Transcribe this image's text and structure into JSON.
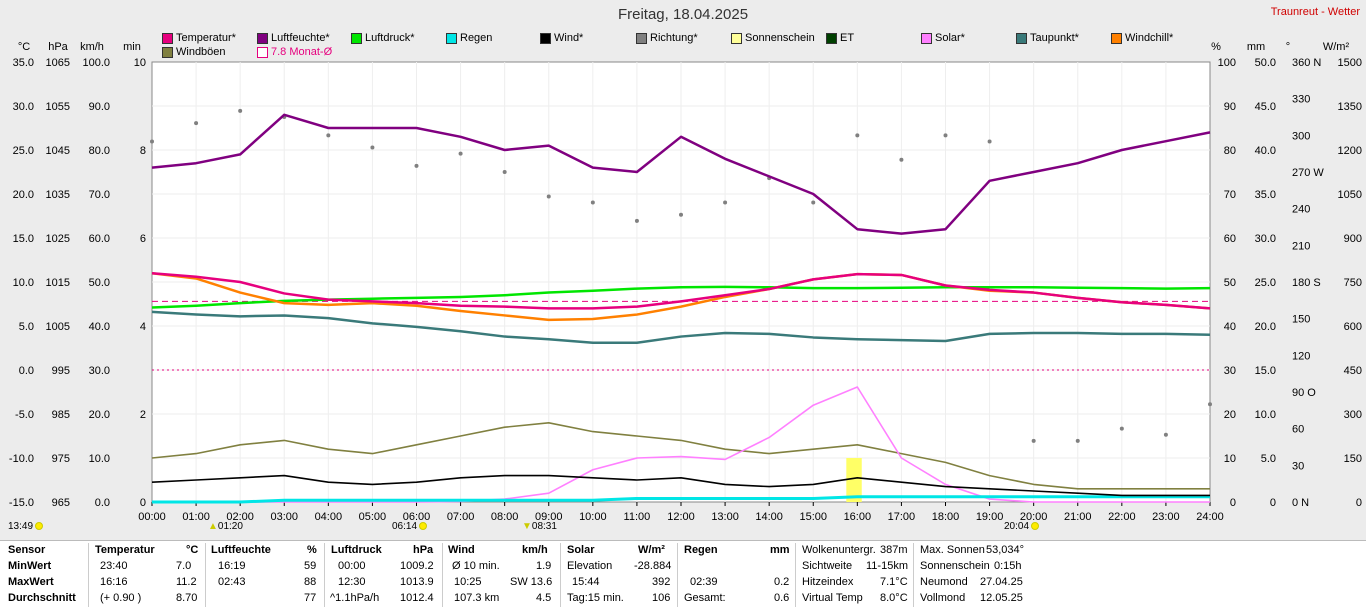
{
  "title": "Freitag, 18.04.2025",
  "station": "Traunreut - Wetter",
  "units_left": [
    "°C",
    "hPa",
    "km/h",
    "min"
  ],
  "units_right": [
    "%",
    "mm",
    "°",
    "W/m²"
  ],
  "axes": {
    "celsius": [
      "35.0",
      "30.0",
      "25.0",
      "20.0",
      "15.0",
      "10.0",
      "5.0",
      "0.0",
      "-5.0",
      "-10.0",
      "-15.0"
    ],
    "hpa": [
      "1065",
      "1055",
      "1045",
      "1035",
      "1025",
      "1015",
      "1005",
      "995",
      "985",
      "975",
      "965"
    ],
    "kmh": [
      "100.0",
      "90.0",
      "80.0",
      "70.0",
      "60.0",
      "50.0",
      "40.0",
      "30.0",
      "20.0",
      "10.0",
      "0.0"
    ],
    "min": [
      "10",
      "8",
      "6",
      "4",
      "2",
      "0"
    ],
    "pct": [
      "100",
      "90",
      "80",
      "70",
      "60",
      "50",
      "40",
      "30",
      "20",
      "10",
      "0"
    ],
    "mm": [
      "50.0",
      "45.0",
      "40.0",
      "35.0",
      "30.0",
      "25.0",
      "20.0",
      "15.0",
      "10.0",
      "5.0",
      "0"
    ],
    "deg": [
      "360 N",
      "330",
      "300",
      "270 W",
      "240",
      "210",
      "180 S",
      "150",
      "120",
      "90 O",
      "60",
      "30",
      "0 N"
    ],
    "wm2": [
      "1500",
      "1350",
      "1200",
      "1050",
      "900",
      "750",
      "600",
      "450",
      "300",
      "150",
      "0"
    ],
    "hours": [
      "00:00",
      "01:00",
      "02:00",
      "03:00",
      "04:00",
      "05:00",
      "06:00",
      "07:00",
      "08:00",
      "09:00",
      "10:00",
      "11:00",
      "12:00",
      "13:00",
      "14:00",
      "15:00",
      "16:00",
      "17:00",
      "18:00",
      "19:00",
      "20:00",
      "21:00",
      "22:00",
      "23:00",
      "24:00"
    ]
  },
  "legend": [
    {
      "label": "Temperatur*",
      "color": "#e6007e"
    },
    {
      "label": "Luftfeuchte*",
      "color": "#800080"
    },
    {
      "label": "Luftdruck*",
      "color": "#00e600"
    },
    {
      "label": "Regen",
      "color": "#00e6e6"
    },
    {
      "label": "Wind*",
      "color": "#000000"
    },
    {
      "label": "Richtung*",
      "color": "#808080"
    },
    {
      "label": "Sonnenschein",
      "color": "#ffff99"
    },
    {
      "label": "ET",
      "color": "#004000"
    },
    {
      "label": "Solar*",
      "color": "#ff80ff"
    },
    {
      "label": "Taupunkt*",
      "color": "#3a7a7a"
    },
    {
      "label": "Windchill*",
      "color": "#ff8000"
    },
    {
      "label": "Windböen",
      "color": "#808040"
    },
    {
      "label": "7.8 Monat-Ø",
      "color": "#e6007e"
    }
  ],
  "markers": {
    "start_time": "13:49",
    "moonset": "01:20",
    "sunrise": "06:14",
    "moonrise": "08:31",
    "sunset": "20:04"
  },
  "stats": {
    "headers": {
      "sensor": "Sensor",
      "temp": "Temperatur",
      "temp_u": "°C",
      "hum": "Luftfeuchte",
      "hum_u": "%",
      "press": "Luftdruck",
      "press_u": "hPa",
      "wind": "Wind",
      "wind_u": "km/h",
      "solar": "Solar",
      "solar_u": "W/m²",
      "rain": "Regen",
      "rain_u": "mm"
    },
    "row_labels": [
      "MinWert",
      "MaxWert",
      "Durchschnitt"
    ],
    "temp": [
      [
        "23:40",
        "7.0"
      ],
      [
        "16:16",
        "11.2"
      ],
      [
        "(+ 0.90 )",
        "8.70"
      ]
    ],
    "hum": [
      [
        "16:19",
        "59"
      ],
      [
        "02:43",
        "88"
      ],
      [
        "",
        "77"
      ]
    ],
    "press": [
      [
        "00:00",
        "1009.2"
      ],
      [
        "12:30",
        "1013.9"
      ],
      [
        "^1.1hPa/h",
        "1012.4"
      ]
    ],
    "wind": [
      [
        "Ø 10 min.",
        "1.9"
      ],
      [
        "10:25",
        "SW 13.6"
      ],
      [
        "107.3 km",
        "4.5"
      ]
    ],
    "solar": [
      [
        "Elevation",
        "-28.884"
      ],
      [
        "15:44",
        "392"
      ],
      [
        "Tag:15 min.",
        "106"
      ]
    ],
    "rain": [
      [
        "",
        ""
      ],
      [
        "02:39",
        "0.2"
      ],
      [
        "Gesamt:",
        "0.6"
      ]
    ],
    "extra1": [
      [
        "Wolkenuntergr.",
        "387m"
      ],
      [
        "Sichtweite",
        "11-15km"
      ],
      [
        "Hitzeindex",
        "7.1°C"
      ],
      [
        "Virtual Temp",
        "8.0°C"
      ]
    ],
    "extra2": [
      [
        "Max. Sonnen",
        "53,034°"
      ],
      [
        "Sonnenschein",
        "0:15h"
      ],
      [
        "Neumond",
        "27.04.25"
      ],
      [
        "Vollmond",
        "12.05.25"
      ]
    ]
  },
  "chart_data": {
    "type": "line",
    "title": "Freitag, 18.04.2025",
    "x": [
      "00:00",
      "01:00",
      "02:00",
      "03:00",
      "04:00",
      "05:00",
      "06:00",
      "07:00",
      "08:00",
      "09:00",
      "10:00",
      "11:00",
      "12:00",
      "13:00",
      "14:00",
      "15:00",
      "16:00",
      "17:00",
      "18:00",
      "19:00",
      "20:00",
      "21:00",
      "22:00",
      "23:00",
      "24:00"
    ],
    "xlim": [
      "00:00",
      "24:00"
    ],
    "monthly_avg_temp": 7.8,
    "series": [
      {
        "name": "Temperatur*",
        "unit": "°C",
        "color": "#e6007e",
        "values": [
          11.0,
          10.6,
          10.0,
          8.7,
          8.0,
          7.8,
          7.6,
          7.3,
          7.2,
          7.0,
          7.0,
          7.2,
          7.8,
          8.5,
          9.2,
          10.3,
          10.9,
          10.8,
          9.6,
          9.1,
          8.8,
          8.2,
          7.7,
          7.4,
          7.0
        ]
      },
      {
        "name": "Luftfeuchte*",
        "unit": "%",
        "color": "#800080",
        "values": [
          76,
          77,
          79,
          88,
          85,
          85,
          85,
          83,
          80,
          81,
          76,
          75,
          83,
          78,
          74,
          70,
          62,
          61,
          62,
          73,
          75,
          77,
          80,
          82,
          84
        ]
      },
      {
        "name": "Luftdruck*",
        "unit": "hPa",
        "color": "#00e600",
        "values": [
          1009.2,
          1009.6,
          1010.2,
          1010.7,
          1011.0,
          1011.2,
          1011.4,
          1011.6,
          1012.0,
          1012.6,
          1013.0,
          1013.5,
          1013.8,
          1013.9,
          1013.8,
          1013.6,
          1013.6,
          1013.7,
          1013.8,
          1013.8,
          1013.8,
          1013.7,
          1013.6,
          1013.5,
          1013.6
        ]
      },
      {
        "name": "Taupunkt*",
        "unit": "°C",
        "color": "#3a7a7a",
        "values": [
          6.6,
          6.3,
          6.1,
          6.2,
          5.9,
          5.3,
          4.9,
          4.4,
          3.8,
          3.5,
          3.1,
          3.1,
          3.8,
          4.2,
          4.1,
          3.7,
          3.5,
          3.4,
          3.3,
          4.1,
          4.2,
          4.2,
          4.1,
          4.1,
          4.0
        ]
      },
      {
        "name": "Windchill*",
        "unit": "°C",
        "color": "#ff8000",
        "values": [
          11.0,
          10.4,
          8.8,
          7.6,
          7.4,
          7.6,
          7.3,
          6.7,
          6.2,
          5.7,
          5.8,
          6.3,
          7.2,
          8.3,
          9.2,
          10.3,
          10.9,
          10.8,
          9.6,
          9.0,
          8.8,
          8.2,
          7.7,
          7.4,
          7.0
        ]
      },
      {
        "name": "Wind*",
        "unit": "km/h",
        "color": "#000000",
        "values": [
          4.5,
          5.0,
          5.5,
          6.0,
          4.5,
          4.0,
          4.5,
          5.5,
          6.0,
          6.0,
          5.5,
          5.0,
          5.5,
          4.0,
          3.5,
          4.0,
          5.5,
          4.5,
          3.5,
          3.0,
          2.5,
          2.0,
          1.5,
          1.5,
          1.5
        ]
      },
      {
        "name": "Windböen",
        "unit": "km/h",
        "color": "#808040",
        "values": [
          10,
          11,
          13,
          14,
          12,
          11,
          13,
          15,
          17,
          18,
          16,
          15,
          14,
          12,
          11,
          12,
          13,
          11,
          9,
          6,
          4,
          3,
          3,
          3,
          3
        ]
      },
      {
        "name": "Solar*",
        "unit": "W/m²",
        "color": "#ff80ff",
        "values": [
          0,
          0,
          0,
          0,
          0,
          0,
          0,
          2,
          10,
          30,
          110,
          150,
          155,
          145,
          220,
          330,
          392,
          150,
          60,
          10,
          0,
          0,
          0,
          0,
          0
        ]
      },
      {
        "name": "Regen",
        "unit": "mm",
        "color": "#00e6e6",
        "values": [
          0,
          0,
          0,
          0.2,
          0.2,
          0.2,
          0.2,
          0.2,
          0.2,
          0.2,
          0.2,
          0.4,
          0.4,
          0.4,
          0.4,
          0.4,
          0.6,
          0.6,
          0.6,
          0.6,
          0.6,
          0.6,
          0.6,
          0.6,
          0.6
        ]
      },
      {
        "name": "Richtung*",
        "unit": "°",
        "color": "#808080",
        "values": [
          295,
          310,
          320,
          315,
          300,
          290,
          275,
          285,
          270,
          250,
          245,
          230,
          235,
          245,
          265,
          245,
          300,
          280,
          300,
          295,
          50,
          50,
          60,
          55,
          80
        ]
      }
    ]
  }
}
